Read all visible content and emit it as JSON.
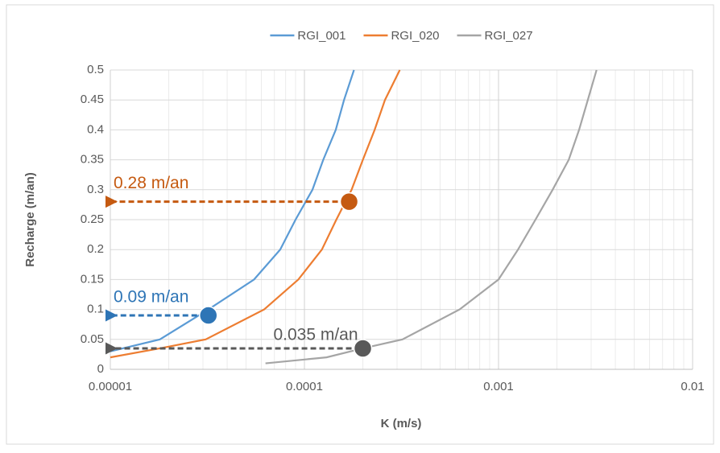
{
  "chart_data": {
    "type": "line",
    "x_label": "K (m/s)",
    "y_label": "Recharge (m/an)",
    "xscale": "log",
    "xlim": [
      1e-05,
      0.01
    ],
    "xticks": [
      1e-05,
      0.0001,
      0.001,
      0.01
    ],
    "ylim": [
      0,
      0.5
    ],
    "yticks": [
      0,
      0.05,
      0.1,
      0.15,
      0.2,
      0.25,
      0.3,
      0.35,
      0.4,
      0.45,
      0.5
    ],
    "grid": true,
    "minor_grid": true,
    "legend": "top",
    "series": [
      {
        "name": "RGI_001",
        "color": "#5b9bd5",
        "x": [
          1e-05,
          1.8e-05,
          3.2e-05,
          5.5e-05,
          7.5e-05,
          9e-05,
          0.00011,
          0.000125,
          0.000145,
          0.00016,
          0.00018
        ],
        "values": [
          0.03,
          0.05,
          0.1,
          0.15,
          0.2,
          0.25,
          0.3,
          0.35,
          0.4,
          0.45,
          0.5
        ]
      },
      {
        "name": "RGI_020",
        "color": "#ed7d31",
        "x": [
          1e-05,
          1.8e-05,
          3.1e-05,
          6.2e-05,
          9.3e-05,
          0.000123,
          0.000146,
          0.000175,
          0.0002,
          0.00023,
          0.00026,
          0.00031
        ],
        "values": [
          0.02,
          0.035,
          0.05,
          0.1,
          0.15,
          0.2,
          0.25,
          0.3,
          0.35,
          0.4,
          0.45,
          0.5
        ]
      },
      {
        "name": "RGI_027",
        "color": "#a5a5a5",
        "x": [
          6.3e-05,
          0.00013,
          0.0002,
          0.00032,
          0.00063,
          0.001,
          0.00126,
          0.00155,
          0.0019,
          0.0023,
          0.0026,
          0.0032
        ],
        "values": [
          0.01,
          0.02,
          0.035,
          0.05,
          0.1,
          0.15,
          0.2,
          0.25,
          0.3,
          0.35,
          0.4,
          0.5
        ]
      }
    ],
    "annotations": [
      {
        "text": "0.28 m/an",
        "x": 0.00017,
        "y": 0.28,
        "color": "#c55a11"
      },
      {
        "text": "0.09 m/an",
        "x": 3.2e-05,
        "y": 0.09,
        "color": "#2e75b6"
      },
      {
        "text": "0.035 m/an",
        "x": 0.0002,
        "y": 0.035,
        "color": "#595959"
      }
    ]
  }
}
